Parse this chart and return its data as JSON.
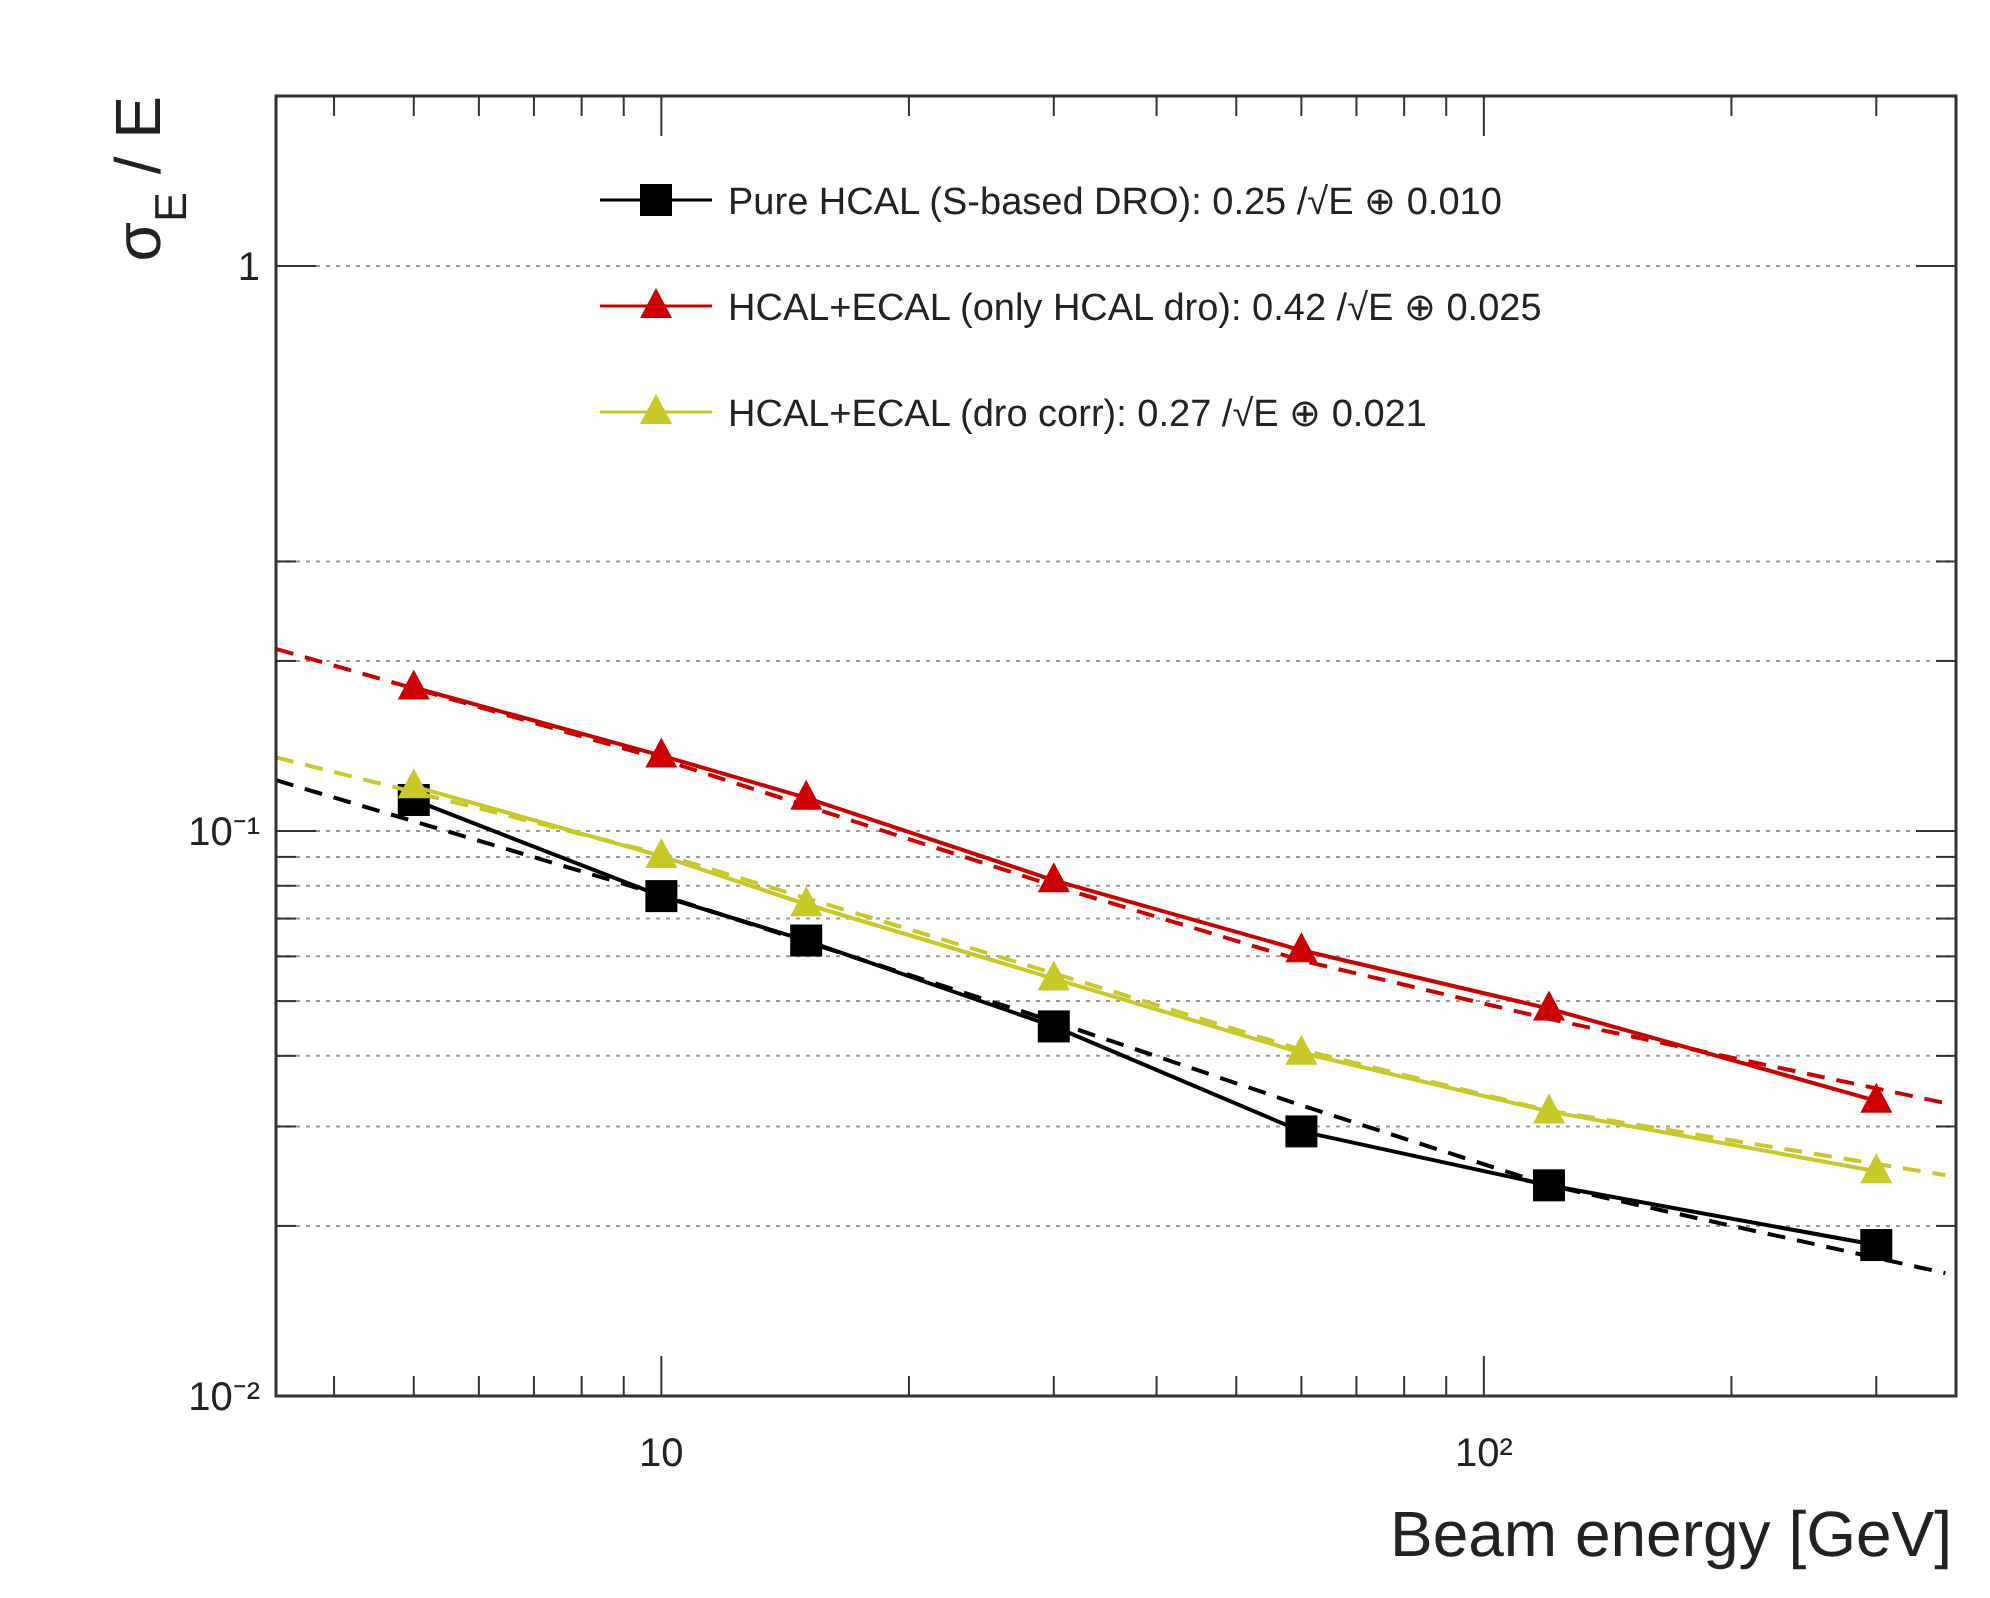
{
  "chart_data": {
    "type": "line",
    "xlabel": "Beam energy [GeV]",
    "ylabel": "σ$_{E}$ / E",
    "log": "xy",
    "grid": "y",
    "legend": "top",
    "marker": "square",
    "line_style": "solid",
    "xlim": [
      3.4,
      375
    ],
    "ylim": [
      0.01,
      2
    ],
    "xticks": [
      {
        "value": 4,
        "label": null
      },
      {
        "value": 5,
        "label": null
      },
      {
        "value": 6,
        "label": null
      },
      {
        "value": 7,
        "label": null
      },
      {
        "value": 8,
        "label": null
      },
      {
        "value": 9,
        "label": null
      },
      10,
      {
        "value": 20,
        "label": null
      },
      {
        "value": 30,
        "label": null
      },
      {
        "value": 40,
        "label": null
      },
      {
        "value": 50,
        "label": null
      },
      {
        "value": 60,
        "label": null
      },
      {
        "value": 70,
        "label": null
      },
      {
        "value": 80,
        "label": null
      },
      {
        "value": 90,
        "label": null
      },
      {
        "value": 100,
        "label": "10²"
      },
      {
        "value": 200,
        "label": null
      },
      {
        "value": 300,
        "label": null
      }
    ],
    "yticks": [
      {
        "value": 0.01,
        "label": "10⁻²"
      },
      {
        "value": 0.02,
        "label": null
      },
      {
        "value": 0.03,
        "label": null
      },
      {
        "value": 0.04,
        "label": null
      },
      {
        "value": 0.05,
        "label": null
      },
      {
        "value": 0.06,
        "label": null
      },
      {
        "value": 0.07,
        "label": null
      },
      {
        "value": 0.08,
        "label": null
      },
      {
        "value": 0.09,
        "label": null
      },
      {
        "value": 0.1,
        "label": "10⁻¹"
      },
      {
        "value": 0.2,
        "label": null
      },
      {
        "value": 0.3,
        "label": null
      },
      1
    ],
    "series": [
      {
        "name": "Pure HCAL (S-based DRO): 0.25 /√E ⊕ 0.010",
        "color": "#000000",
        "x": [
          5,
          10,
          15,
          30,
          60,
          120,
          300
        ],
        "values": [
          0.1135,
          0.0767,
          0.064,
          0.0451,
          0.0294,
          0.0236,
          0.0185
        ]
      },
      {
        "name": "HCAL+ECAL (only HCAL dro): 0.42 /√E ⊕ 0.025",
        "color": "#cc0000",
        "marker": "triangle",
        "x": [
          5,
          10,
          15,
          30,
          60,
          120,
          300
        ],
        "values": [
          0.1795,
          0.136,
          0.1145,
          0.0818,
          0.0615,
          0.0485,
          0.0333
        ]
      },
      {
        "name": "HCAL+ECAL (dro corr): 0.27 /√E ⊕ 0.021",
        "color": "#c8c828",
        "marker": "triangle",
        "x": [
          5,
          10,
          15,
          30,
          60,
          120,
          300
        ],
        "values": [
          0.12,
          0.0903,
          0.0742,
          0.0548,
          0.0405,
          0.0319,
          0.025
        ]
      },
      {
        "color": "#000000",
        "marker": "none",
        "line_style": "dashed",
        "x": [
          3.4,
          10,
          30,
          60,
          120,
          364
        ],
        "values": [
          0.123,
          0.077,
          0.046,
          0.0327,
          0.0236,
          0.0165
        ]
      },
      {
        "color": "#cc0000",
        "marker": "none",
        "line_style": "dashed",
        "x": [
          3.4,
          10,
          30,
          60,
          120,
          364
        ],
        "values": [
          0.21,
          0.134,
          0.08,
          0.059,
          0.0465,
          0.033
        ]
      },
      {
        "color": "#c8c828",
        "marker": "none",
        "line_style": "dashed",
        "x": [
          3.4,
          10,
          30,
          60,
          120,
          364
        ],
        "values": [
          0.135,
          0.091,
          0.056,
          0.041,
          0.032,
          0.0246
        ]
      }
    ]
  }
}
